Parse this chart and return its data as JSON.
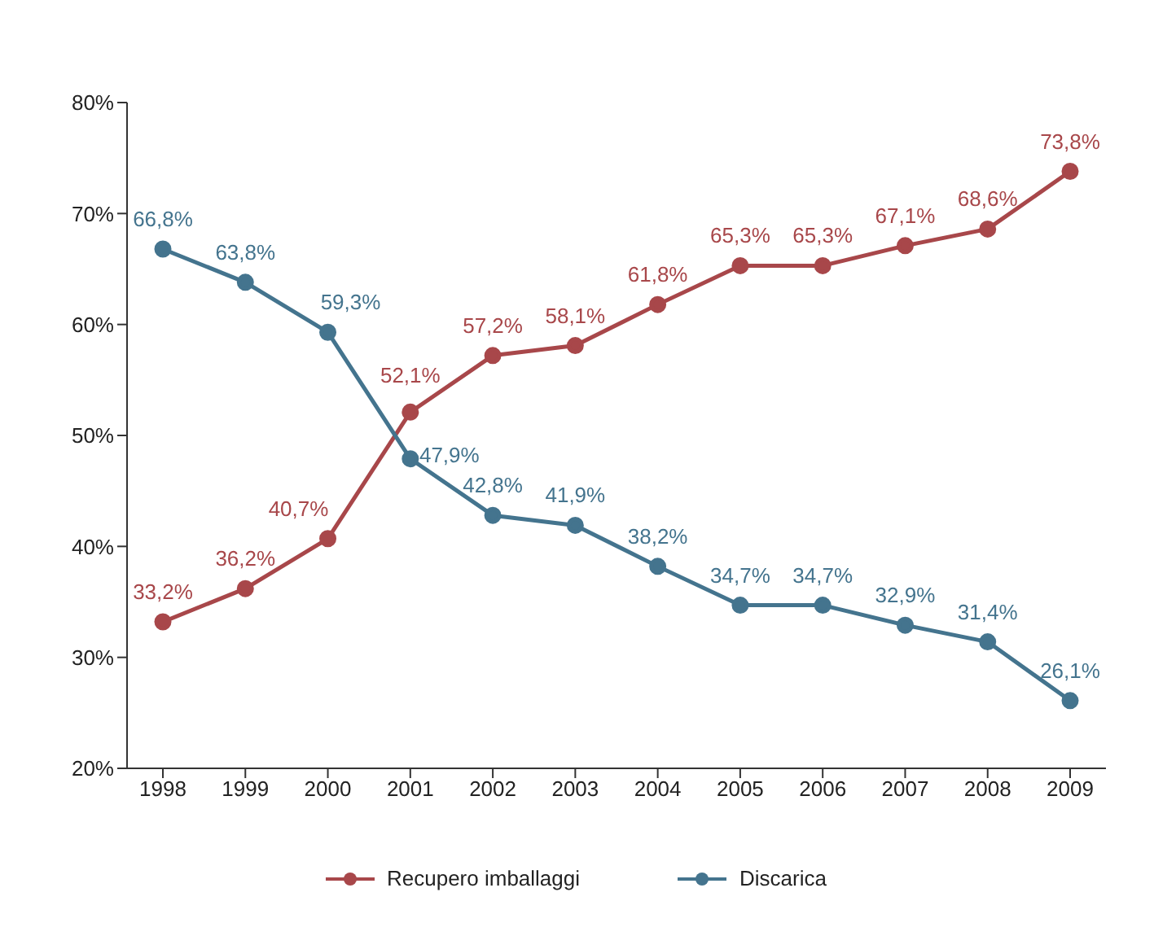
{
  "chart_data": {
    "type": "line",
    "categories": [
      "1998",
      "1999",
      "2000",
      "2001",
      "2002",
      "2003",
      "2004",
      "2005",
      "2006",
      "2007",
      "2008",
      "2009"
    ],
    "series": [
      {
        "name": "Recupero imballaggi",
        "color": "#a8474a",
        "values": [
          33.2,
          36.2,
          40.7,
          52.1,
          57.2,
          58.1,
          61.8,
          65.3,
          65.3,
          67.1,
          68.6,
          73.8
        ],
        "value_labels": [
          "33,2%",
          "36,2%",
          "40,7%",
          "52,1%",
          "57,2%",
          "58,1%",
          "61,8%",
          "65,3%",
          "65,3%",
          "67,1%",
          "68,6%",
          "73,8%"
        ]
      },
      {
        "name": "Discarica",
        "color": "#44748e",
        "values": [
          66.8,
          63.8,
          59.3,
          47.9,
          42.8,
          41.9,
          38.2,
          34.7,
          34.7,
          32.9,
          31.4,
          26.1
        ],
        "value_labels": [
          "66,8%",
          "63,8%",
          "59,3%",
          "47,9%",
          "42,8%",
          "41,9%",
          "38,2%",
          "34,7%",
          "34,7%",
          "32,9%",
          "31,4%",
          "26,1%"
        ]
      }
    ],
    "ylim": [
      20,
      80
    ],
    "yticks": [
      {
        "value": 20,
        "label": "20%"
      },
      {
        "value": 30,
        "label": "30%"
      },
      {
        "value": 40,
        "label": "40%"
      },
      {
        "value": 50,
        "label": "50%"
      },
      {
        "value": 60,
        "label": "60%"
      },
      {
        "value": 70,
        "label": "70%"
      },
      {
        "value": 80,
        "label": "80%"
      }
    ],
    "grid": false,
    "legend": "bottom",
    "marker": "circle",
    "line_style": "solid"
  }
}
